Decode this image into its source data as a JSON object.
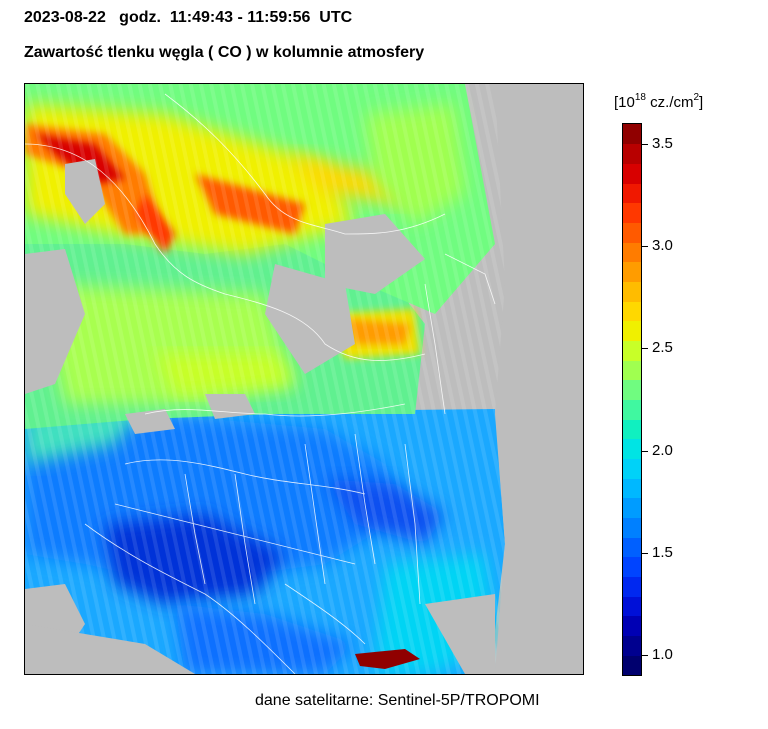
{
  "header": {
    "date_time": "2023-08-22   godz.  11:49:43 - 11:59:56  UTC",
    "title": "Zawartość tlenku węgla ( CO ) w kolumnie atmosfery"
  },
  "colorbar": {
    "unit_prefix": "[10",
    "unit_exponent": "18",
    "unit_mid": " cz./cm",
    "unit_power": "2",
    "unit_suffix": "]",
    "min": 0.9,
    "max": 3.6,
    "ticks": [
      {
        "value": 1.0,
        "label": "1.0"
      },
      {
        "value": 1.5,
        "label": "1.5"
      },
      {
        "value": 2.0,
        "label": "2.0"
      },
      {
        "value": 2.5,
        "label": "2.5"
      },
      {
        "value": 3.0,
        "label": "3.0"
      },
      {
        "value": 3.5,
        "label": "3.5"
      }
    ],
    "colors": [
      "#00006e",
      "#00008f",
      "#0000b4",
      "#0010d8",
      "#0028f0",
      "#0044ff",
      "#0060ff",
      "#0080ff",
      "#009cff",
      "#00b8ff",
      "#00d2f8",
      "#00e4e4",
      "#10f0c0",
      "#40f8a0",
      "#70fc80",
      "#a0ff50",
      "#c8ff28",
      "#f0f000",
      "#ffd800",
      "#ffbc00",
      "#ff9c00",
      "#ff7c00",
      "#ff5a00",
      "#ff3800",
      "#f01800",
      "#d80000",
      "#b80000",
      "#900000"
    ],
    "no_data_color": "#bdbdbd"
  },
  "map": {
    "region": "Europe",
    "borders_color": "#ffffff"
  },
  "footer": {
    "source": "dane satelitarne: Sentinel-5P/TROPOMI"
  }
}
